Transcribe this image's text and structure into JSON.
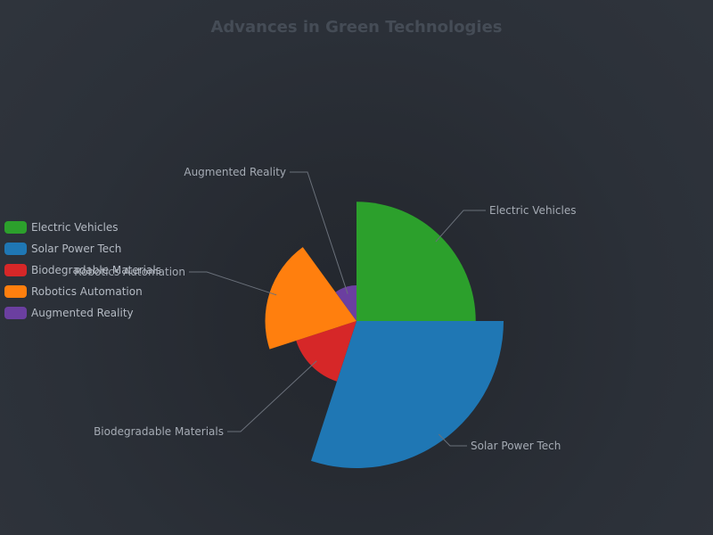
{
  "chart_data": {
    "type": "pie",
    "subtype": "nightingale-radius",
    "title": "Advances in Green Technologies",
    "legend_position": "left",
    "start_angle_deg": 90,
    "clockwise": true,
    "categories": [
      "Electric Vehicles",
      "Solar Power Tech",
      "Biodegradable Materials",
      "Robotics Automation",
      "Augmented Reality"
    ],
    "values": [
      25,
      30,
      15,
      20,
      10
    ],
    "colors": [
      "#2ca02c",
      "#1f77b4",
      "#d62728",
      "#ff7f0e",
      "#6b3fa0"
    ]
  }
}
